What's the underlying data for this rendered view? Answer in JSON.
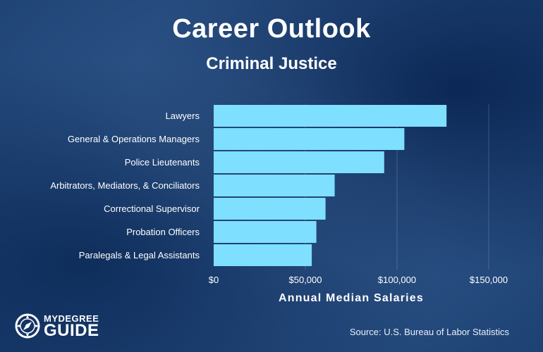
{
  "header": {
    "title": "Career Outlook",
    "subtitle": "Criminal Justice"
  },
  "chart_data": {
    "type": "bar",
    "orientation": "horizontal",
    "categories": [
      "Lawyers",
      "General & Operations Managers",
      "Police Lieutenants",
      "Arbitrators, Mediators, & Conciliators",
      "Correctional Supervisor",
      "Probation Officers",
      "Paralegals & Legal Assistants"
    ],
    "values": [
      127000,
      104000,
      93000,
      66000,
      61000,
      56000,
      53500
    ],
    "xlabel": "Annual Median Salaries",
    "xlim": [
      0,
      150000
    ],
    "x_ticks": [
      0,
      50000,
      100000,
      150000
    ],
    "x_tick_labels": [
      "$0",
      "$50,000",
      "$100,000",
      "$150,000"
    ],
    "grid": "vertical",
    "bar_color": "#7fdfff"
  },
  "footer": {
    "source": "Source: U.S. Bureau of Labor Statistics",
    "logo_top": "MYDEGREE",
    "logo_bottom": "GUIDE"
  }
}
